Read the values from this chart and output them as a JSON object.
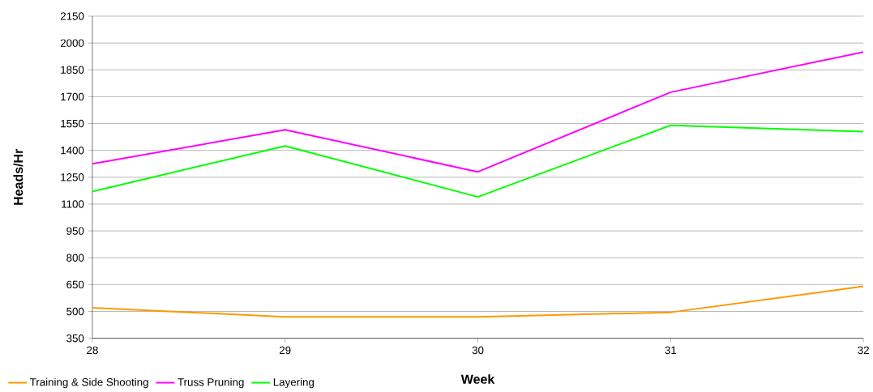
{
  "chart_data": {
    "type": "line",
    "xlabel": "Week",
    "ylabel": "Heads/Hr",
    "x": [
      28,
      29,
      30,
      31,
      32
    ],
    "series": [
      {
        "name": "Training & Side Shooting",
        "color": "#ff9900",
        "values": [
          520,
          470,
          470,
          495,
          640
        ]
      },
      {
        "name": "Truss Pruning",
        "color": "#ff00ff",
        "values": [
          1325,
          1515,
          1280,
          1725,
          1950
        ]
      },
      {
        "name": "Layering",
        "color": "#00ff00",
        "values": [
          1170,
          1425,
          1140,
          1540,
          1505
        ]
      }
    ],
    "xlim": [
      28,
      32
    ],
    "xticks": [
      28,
      29,
      30,
      31,
      32
    ],
    "ylim": [
      350,
      2150
    ],
    "yticks": [
      350,
      500,
      650,
      800,
      950,
      1100,
      1250,
      1400,
      1550,
      1700,
      1850,
      2000,
      2150
    ],
    "grid": "y",
    "legend": "bottom left",
    "marker": "none",
    "line_style": "solid"
  }
}
